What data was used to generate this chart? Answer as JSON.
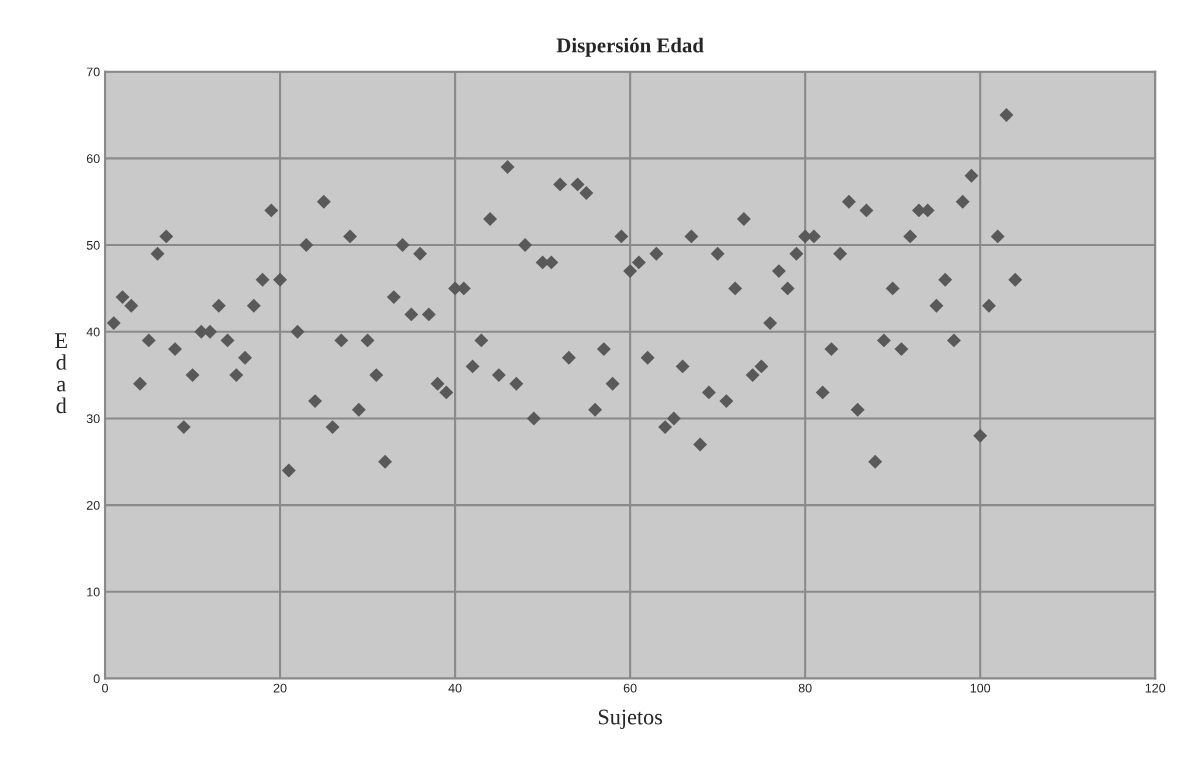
{
  "chart_data": {
    "type": "scatter",
    "title": "Dispersión Edad",
    "xlabel": "Sujetos",
    "ylabel": "Edad",
    "x": [
      1,
      2,
      3,
      4,
      5,
      6,
      7,
      8,
      9,
      10,
      11,
      12,
      13,
      14,
      15,
      16,
      17,
      18,
      19,
      20,
      21,
      22,
      23,
      24,
      25,
      26,
      27,
      28,
      29,
      30,
      31,
      32,
      33,
      34,
      35,
      36,
      37,
      38,
      39,
      40,
      41,
      42,
      43,
      44,
      45,
      46,
      47,
      48,
      49,
      50,
      51,
      52,
      53,
      54,
      55,
      56,
      57,
      58,
      59,
      60,
      61,
      62,
      63,
      64,
      65,
      66,
      67,
      68,
      69,
      70,
      71,
      72,
      73,
      74,
      75,
      76,
      77,
      78,
      79,
      80,
      81,
      82,
      83,
      84,
      85,
      86,
      87,
      88,
      89,
      90,
      91,
      92,
      93,
      94,
      95,
      96,
      97,
      98,
      99,
      100,
      101,
      102,
      103,
      104
    ],
    "series": [
      {
        "color": "#595959",
        "values": [
          41,
          44,
          43,
          34,
          39,
          49,
          51,
          38,
          29,
          35,
          40,
          40,
          43,
          39,
          35,
          37,
          43,
          46,
          54,
          46,
          24,
          40,
          50,
          32,
          55,
          29,
          39,
          51,
          31,
          39,
          35,
          25,
          44,
          50,
          42,
          49,
          42,
          34,
          33,
          45,
          45,
          36,
          39,
          53,
          35,
          59,
          34,
          50,
          30,
          48,
          48,
          57,
          37,
          57,
          56,
          31,
          38,
          34,
          51,
          47,
          48,
          37,
          49,
          29,
          30,
          36,
          51,
          27,
          33,
          49,
          32,
          45,
          53,
          35,
          36,
          41,
          47,
          45,
          49,
          51,
          51,
          33,
          38,
          49,
          55,
          31,
          54,
          25,
          39,
          45,
          38,
          51,
          54,
          54,
          43,
          46,
          39,
          55,
          58,
          28,
          43,
          51,
          65,
          46
        ]
      }
    ],
    "xlim": [
      0,
      120
    ],
    "xticks": [
      0,
      20,
      40,
      60,
      80,
      100,
      120
    ],
    "ylim": [
      0,
      70
    ],
    "yticks": [
      0,
      10,
      20,
      30,
      40,
      50,
      60,
      70
    ],
    "grid": true,
    "marker": "diamond"
  }
}
